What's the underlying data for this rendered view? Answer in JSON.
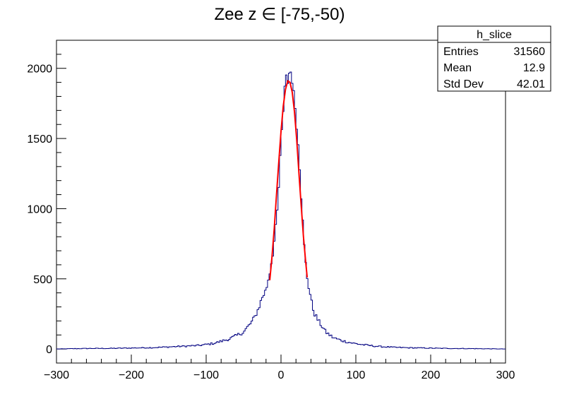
{
  "chart_data": {
    "type": "histogram",
    "title": "Zee z ∈ [-75,-50)",
    "xlabel": "",
    "ylabel": "",
    "xlim": [
      -300,
      300
    ],
    "ylim": [
      -100,
      2200
    ],
    "x_ticks": [
      -300,
      -200,
      -100,
      0,
      100,
      200,
      300
    ],
    "x_tick_labels": [
      "−300",
      "−200",
      "−100",
      "0",
      "100",
      "200",
      "300"
    ],
    "y_ticks": [
      0,
      500,
      1000,
      1500,
      2000
    ],
    "y_tick_labels": [
      "0",
      "500",
      "1000",
      "1500",
      "2000"
    ],
    "grid": false,
    "histogram": {
      "name": "h_slice",
      "color": "#000080",
      "bin_width": 2,
      "x": [
        -300,
        -270,
        -250,
        -230,
        -210,
        -190,
        -170,
        -150,
        -130,
        -110,
        -100,
        -90,
        -80,
        -70,
        -60,
        -50,
        -45,
        -40,
        -35,
        -30,
        -25,
        -20,
        -15,
        -10,
        -6,
        -4,
        -2,
        0,
        2,
        4,
        6,
        8,
        10,
        12,
        14,
        16,
        18,
        20,
        22,
        24,
        26,
        28,
        30,
        32,
        34,
        36,
        38,
        40,
        42,
        45,
        50,
        55,
        60,
        65,
        70,
        80,
        90,
        100,
        110,
        120,
        130,
        150,
        170,
        190,
        210,
        230,
        250,
        270,
        300
      ],
      "y": [
        0,
        3,
        4,
        4,
        6,
        8,
        10,
        15,
        20,
        25,
        32,
        40,
        55,
        70,
        95,
        120,
        155,
        185,
        230,
        290,
        370,
        420,
        550,
        720,
        900,
        1050,
        1250,
        1450,
        1620,
        1800,
        1950,
        1960,
        1900,
        1950,
        2030,
        1860,
        1800,
        1650,
        1560,
        1420,
        1200,
        1000,
        800,
        660,
        550,
        470,
        420,
        360,
        300,
        250,
        200,
        160,
        120,
        100,
        80,
        62,
        48,
        38,
        30,
        24,
        18,
        12,
        9,
        7,
        5,
        4,
        3,
        2,
        0
      ]
    },
    "fit": {
      "type": "gaussian",
      "color": "#ff0000",
      "x_range": [
        -15,
        35
      ],
      "x": [
        -15,
        -12,
        -9,
        -6,
        -3,
        0,
        3,
        6,
        9,
        12,
        15,
        18,
        21,
        24,
        27,
        30,
        33,
        35
      ],
      "y": [
        490,
        660,
        860,
        1100,
        1330,
        1550,
        1730,
        1850,
        1910,
        1900,
        1830,
        1690,
        1490,
        1250,
        1020,
        800,
        620,
        510
      ]
    },
    "stats_box": {
      "title": "h_slice",
      "rows": [
        {
          "label": "Entries",
          "value": "31560"
        },
        {
          "label": "Mean",
          "value": "12.9"
        },
        {
          "label": "Std Dev",
          "value": "42.01"
        }
      ]
    }
  }
}
